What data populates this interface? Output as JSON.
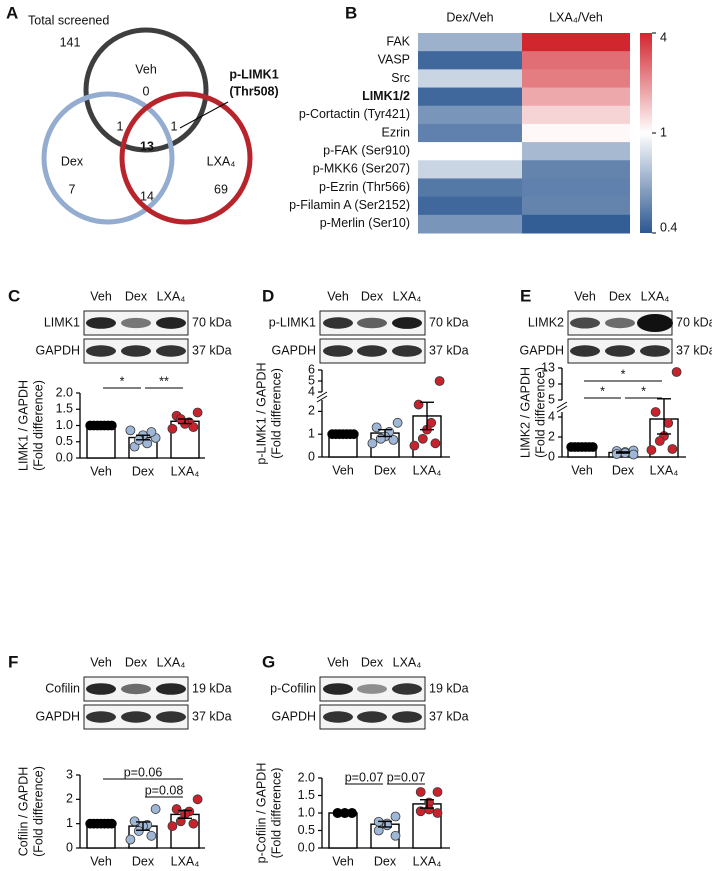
{
  "venn": {
    "panel": "A",
    "total_label": "Total screened",
    "total": 141,
    "sets": [
      {
        "name": "Veh",
        "only": 0
      },
      {
        "name": "Dex",
        "only": 7
      },
      {
        "name": "LXA₄",
        "only": 69
      }
    ],
    "veh_dex": 1,
    "all": 13,
    "veh_lxa": 1,
    "dex_lxa": 14,
    "callout": [
      "p-LIMK1",
      "(Thr508)"
    ]
  },
  "chart_data": [
    {
      "panel": "B",
      "type": "heatmap",
      "columns": [
        "Dex/Veh",
        "LXA₄/Veh"
      ],
      "rows": [
        "FAK",
        "VASP",
        "Src",
        "LIMK1/2",
        "p-Cortactin (Tyr421)",
        "Ezrin",
        "p-FAK (Ser910)",
        "p-MKK6 (Ser207)",
        "p-Ezrin (Thr566)",
        "p-Filamin A (Ser2152)",
        "p-Merlin (Ser10)"
      ],
      "values": [
        [
          0.72,
          4.0
        ],
        [
          0.46,
          3.0
        ],
        [
          0.85,
          2.8
        ],
        [
          0.46,
          2.2
        ],
        [
          0.62,
          1.6
        ],
        [
          0.55,
          1.1
        ],
        [
          1.0,
          0.75
        ],
        [
          0.85,
          0.56
        ],
        [
          0.52,
          0.55
        ],
        [
          0.46,
          0.56
        ],
        [
          0.62,
          0.42
        ]
      ],
      "highlight": "LIMK1/2",
      "clim": [
        0.4,
        1,
        4
      ],
      "cticks": [
        4,
        1,
        0.4
      ],
      "colors": [
        "#2b5791",
        "#ffffff",
        "#d2262f"
      ]
    },
    {
      "panel": "C",
      "type": "bar",
      "blot": {
        "lanes": [
          "Veh",
          "Dex",
          "LXA₄"
        ],
        "rows": [
          {
            "protein": "LIMK1",
            "size": "70 kDa"
          },
          {
            "protein": "GAPDH",
            "size": "37 kDa"
          }
        ]
      },
      "categories": [
        "Veh",
        "Dex",
        "LXA₄"
      ],
      "values": [
        1.0,
        0.63,
        1.13
      ],
      "errors": [
        0,
        0.07,
        0.07
      ],
      "points": [
        [
          1,
          1,
          1,
          1,
          1,
          1,
          1
        ],
        [
          0.62,
          0.35,
          0.45,
          0.7,
          0.55,
          0.8,
          0.85
        ],
        [
          1.4,
          1.3,
          1.1,
          1.05,
          1.2,
          0.95,
          0.9
        ]
      ],
      "ylabel": [
        "LIMK1 / GAPDH",
        "(Fold difference)"
      ],
      "segments": [
        {
          "ylim": [
            0,
            2
          ],
          "yticks": [
            {
              "value": 0,
              "label": "0.0"
            },
            0.5,
            {
              "value": 1,
              "label": "1.0"
            },
            1.5,
            {
              "value": 2,
              "label": "2.0"
            }
          ]
        }
      ],
      "annotations": [
        "*",
        "**"
      ],
      "colors": [
        "#000000",
        "#9fb7d7",
        "#c8232c"
      ]
    },
    {
      "panel": "D",
      "type": "bar",
      "blot": {
        "lanes": [
          "Veh",
          "Dex",
          "LXA₄"
        ],
        "rows": [
          {
            "protein": "p-LIMK1",
            "size": "70 kDa"
          },
          {
            "protein": "GAPDH",
            "size": "37 kDa"
          }
        ]
      },
      "categories": [
        "Veh",
        "Dex",
        "LXA₄"
      ],
      "values": [
        1.0,
        1.05,
        1.8
      ],
      "errors": [
        0,
        0.15,
        0.6
      ],
      "points": [
        [
          1,
          1,
          1,
          1,
          1,
          1,
          1
        ],
        [
          1.5,
          1.3,
          1.1,
          0.9,
          0.8,
          0.75,
          0.6
        ],
        [
          5.0,
          2.3,
          1.5,
          1.2,
          0.8,
          0.6,
          0.5
        ]
      ],
      "ylabel": [
        "p-LIMK1 / GAPDH",
        "(Fold difference)"
      ],
      "segments": [
        {
          "ylim": [
            0,
            2.5
          ],
          "yticks": [
            0,
            1,
            2
          ]
        },
        {
          "ylim": [
            4,
            6
          ],
          "yticks": [
            4,
            5,
            6
          ]
        }
      ],
      "annotations": [],
      "colors": [
        "#000000",
        "#9fb7d7",
        "#c8232c"
      ]
    },
    {
      "panel": "E",
      "type": "bar",
      "blot": {
        "lanes": [
          "Veh",
          "Dex",
          "LXA₄"
        ],
        "rows": [
          {
            "protein": "LIMK2",
            "size": "70 kDa"
          },
          {
            "protein": "GAPDH",
            "size": "37 kDa"
          }
        ]
      },
      "categories": [
        "Veh",
        "Dex",
        "LXA₄"
      ],
      "values": [
        1.0,
        0.45,
        3.8
      ],
      "errors": [
        0,
        0.06,
        1.5
      ],
      "points": [
        [
          1,
          1,
          1,
          1,
          1,
          1,
          1
        ],
        [
          0.65,
          0.6,
          0.5,
          0.4,
          0.3,
          0.25
        ],
        [
          12,
          4.6,
          3.4,
          2.1,
          1.6,
          0.8,
          0.7
        ]
      ],
      "ylabel": [
        "LIMK2 / GAPDH",
        "(Fold difference)"
      ],
      "segments": [
        {
          "ylim": [
            0,
            4.5
          ],
          "yticks": [
            0,
            2,
            4
          ]
        },
        {
          "ylim": [
            5,
            13
          ],
          "yticks": [
            5,
            9,
            13
          ]
        }
      ],
      "annotations": [
        "*",
        "*",
        "*"
      ],
      "colors": [
        "#000000",
        "#9fb7d7",
        "#c8232c"
      ]
    },
    {
      "panel": "F",
      "type": "bar",
      "blot": {
        "lanes": [
          "Veh",
          "Dex",
          "LXA₄"
        ],
        "rows": [
          {
            "protein": "Cofilin",
            "size": "19 kDa"
          },
          {
            "protein": "GAPDH",
            "size": "37 kDa"
          }
        ]
      },
      "categories": [
        "Veh",
        "Dex",
        "LXA₄"
      ],
      "values": [
        1.0,
        0.9,
        1.38
      ],
      "errors": [
        0,
        0.17,
        0.16
      ],
      "points": [
        [
          1,
          1,
          1,
          1,
          1,
          1,
          1
        ],
        [
          1.6,
          1.1,
          0.95,
          0.9,
          0.7,
          0.5,
          0.35
        ],
        [
          2.0,
          1.6,
          1.5,
          1.4,
          1.1,
          1.0,
          0.9
        ]
      ],
      "ylabel": [
        "Cofilin / GAPDH",
        "(Fold difference)"
      ],
      "segments": [
        {
          "ylim": [
            0,
            3
          ],
          "yticks": [
            0,
            1,
            2,
            3
          ]
        }
      ],
      "annotations": [
        "p=0.06",
        "p=0.08"
      ],
      "colors": [
        "#000000",
        "#9fb7d7",
        "#c8232c"
      ]
    },
    {
      "panel": "G",
      "type": "bar",
      "blot": {
        "lanes": [
          "Veh",
          "Dex",
          "LXA₄"
        ],
        "rows": [
          {
            "protein": "p-Cofilin",
            "size": "19 kDa"
          },
          {
            "protein": "GAPDH",
            "size": "37 kDa"
          }
        ]
      },
      "categories": [
        "Veh",
        "Dex",
        "LXA₄"
      ],
      "values": [
        1.0,
        0.68,
        1.26
      ],
      "errors": [
        0,
        0.08,
        0.12
      ],
      "points": [
        [
          1,
          1,
          1,
          1,
          1,
          1
        ],
        [
          0.9,
          0.75,
          0.7,
          0.65,
          0.5,
          0.35
        ],
        [
          1.6,
          1.6,
          1.3,
          1.1,
          1.05,
          1.0
        ]
      ],
      "ylabel": [
        "p-Cofilin / GAPDH",
        "(Fold difference)"
      ],
      "segments": [
        {
          "ylim": [
            0,
            2
          ],
          "yticks": [
            {
              "value": 0,
              "label": "0.0"
            },
            0.5,
            {
              "value": 1,
              "label": "1.0"
            },
            1.5,
            {
              "value": 2,
              "label": "2.0"
            }
          ]
        }
      ],
      "annotations": [
        "p=0.07",
        "p=0.07"
      ],
      "colors": [
        "#000000",
        "#9fb7d7",
        "#c8232c"
      ]
    }
  ]
}
